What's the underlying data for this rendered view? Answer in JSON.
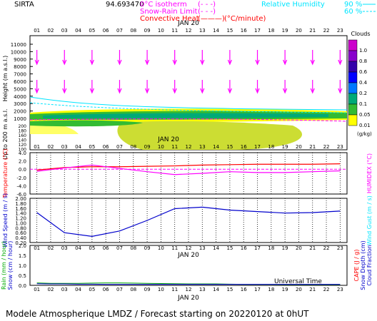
{
  "header": {
    "site": "SIRTA",
    "coord_partial": "94.69",
    "coord_extra": "3470",
    "legend_items": [
      {
        "label": "0°C isotherm",
        "style": "(- - -)",
        "color": "#ff00ff"
      },
      {
        "label": "Snow-Rain Limit",
        "style": "(- - -)",
        "color": "#ff00ff"
      },
      {
        "label": "Convective Heat",
        "style": "(———)",
        "unit": "(°C/minute)",
        "color": "#ff0000"
      }
    ],
    "rh": {
      "label": "Relative Humidity",
      "values": [
        "90 %",
        "60 %"
      ],
      "color": "#00e5ff"
    }
  },
  "footer": {
    "title": "Modele Atmospherique LMDZ / Forecast starting on 20220120 at 0hUT",
    "time_axis_label": "Universal Time"
  },
  "colors": {
    "magenta": "#ff00ff",
    "red": "#ff0000",
    "blue": "#0000cc",
    "cyan": "#00e5ff",
    "green": "#00aa00",
    "orange": "#ff8800"
  },
  "chart_data": [
    {
      "type": "heatmap",
      "name": "clouds-and-wind",
      "title": "",
      "ylabel": "Height (m a.s.l.)",
      "ylabel_lower": "Up to 200 m a.s.l.",
      "date_label": "JAN 20",
      "hours": [
        "01",
        "02",
        "03",
        "04",
        "05",
        "06",
        "07",
        "08",
        "09",
        "10",
        "11",
        "12",
        "13",
        "14",
        "15",
        "16",
        "17",
        "18",
        "19",
        "20",
        "21",
        "22",
        "23"
      ],
      "yticks_upper": [
        "11000",
        "10000",
        "9000",
        "8000",
        "7000",
        "6000",
        "5000",
        "4000",
        "3000",
        "2000",
        "1000"
      ],
      "yticks_lower": [
        "200",
        "180",
        "160",
        "140",
        "120",
        "100"
      ],
      "colorbar": {
        "title": "Clouds",
        "unit": "(g/kg)",
        "ticks": [
          "1.0",
          "0.8",
          "0.6",
          "0.4",
          "0.2",
          "0.1",
          "0.05",
          "0.01"
        ],
        "colors": [
          "#cc00cc",
          "#8800cc",
          "#3300aa",
          "#0000ff",
          "#0077ff",
          "#00aa77",
          "#33bb33",
          "#ffff00"
        ]
      }
    },
    {
      "type": "line",
      "name": "temperature",
      "ylabel": "Temperature (°C)",
      "ylabel_right": "HUMIDEX (°C)",
      "yticks": [
        "4.0",
        "2.0",
        "0.0",
        "-2.0",
        "-4.0",
        "-6.0"
      ],
      "ylim": [
        -6,
        4
      ],
      "x": [
        1,
        3,
        5,
        7,
        9,
        11,
        13,
        15,
        17,
        19,
        21,
        23
      ],
      "series": [
        {
          "values": [
            -0.2,
            0.4,
            0.6,
            0.6,
            0.7,
            0.8,
            1.0,
            1.1,
            1.2,
            1.2,
            1.2,
            1.3
          ],
          "color": "#ff0000"
        },
        {
          "values": [
            -0.5,
            0.3,
            1.0,
            0.2,
            -0.6,
            -1.3,
            -1.0,
            -0.6,
            -0.8,
            -0.8,
            -0.6,
            -0.4
          ],
          "color": "#ff00ff"
        }
      ]
    },
    {
      "type": "line",
      "name": "wind",
      "ylabel": "Wind Speed (m / s)",
      "ylabel_right": "Wind Gust (m / s)",
      "yticks": [
        "2.00",
        "1.80",
        "1.60",
        "1.40",
        "1.20",
        "1.00",
        "0.80",
        "0.60",
        "0.40",
        "0.20"
      ],
      "ylim": [
        0.2,
        2.0
      ],
      "x": [
        1,
        3,
        5,
        7,
        9,
        11,
        13,
        15,
        17,
        19,
        21,
        23
      ],
      "series": [
        {
          "values": [
            1.42,
            0.6,
            0.45,
            0.67,
            1.1,
            1.58,
            1.64,
            1.52,
            1.46,
            1.4,
            1.42,
            1.48
          ],
          "color": "#0000cc"
        }
      ]
    },
    {
      "type": "area",
      "name": "precipitation",
      "ylabel": "Rain (mm / hour)",
      "ylabel_2": "Snow (cm / hour)",
      "ylabel_right": "CAPE (J / g)",
      "ylabel_right_2": "Snow Depth (cm)",
      "ylabel_right_3": "Cloud Fraction",
      "yticks": [
        "2.0",
        "1.5",
        "1.0",
        "0.5",
        "0.0"
      ],
      "ylim": [
        0,
        2
      ],
      "x": [
        1,
        2,
        3,
        4,
        5,
        6,
        7,
        8,
        9,
        10,
        11,
        12,
        13,
        14,
        15,
        16,
        17,
        18,
        19,
        20,
        21,
        22,
        23
      ],
      "series": [
        {
          "values": [
            0.12,
            0.1,
            0.1,
            0.1,
            0.11,
            0.12,
            0.12,
            0.11,
            0.1,
            0.09,
            0.08,
            0.07,
            0.07,
            0.07,
            0.06,
            0.05,
            0.05,
            0.05,
            0.04,
            0.04,
            0.04,
            0.04,
            0.04
          ],
          "color": "#00aa00"
        },
        {
          "values": [
            0.08,
            0.07,
            0.07,
            0.06,
            0.06,
            0.05,
            0.05,
            0.05,
            0.05,
            0.05,
            0.05,
            0.05,
            0.05,
            0.05,
            0.05,
            0.05,
            0.05,
            0.05,
            0.05,
            0.05,
            0.05,
            0.05,
            0.05
          ],
          "color": "#0000cc"
        }
      ]
    }
  ]
}
